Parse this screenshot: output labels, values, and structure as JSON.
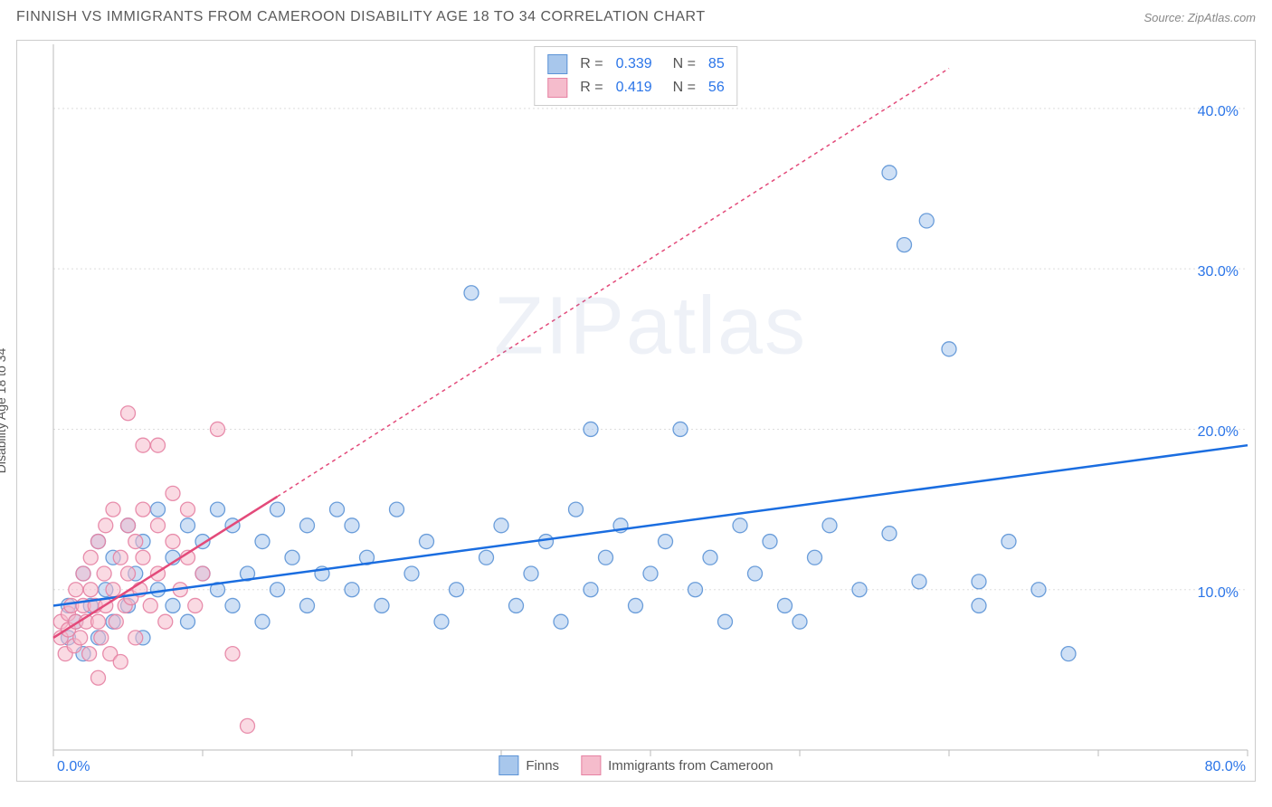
{
  "title": "FINNISH VS IMMIGRANTS FROM CAMEROON DISABILITY AGE 18 TO 34 CORRELATION CHART",
  "source": "Source: ZipAtlas.com",
  "watermark": "ZIPatlas",
  "y_axis_label": "Disability Age 18 to 34",
  "chart": {
    "type": "scatter",
    "background_color": "#ffffff",
    "grid_color": "#dedede",
    "xlim": [
      0,
      80
    ],
    "ylim": [
      0,
      44
    ],
    "x_ticks": [
      0,
      10,
      20,
      30,
      40,
      50,
      60,
      70,
      80
    ],
    "x_tick_labels_shown": {
      "left": "0.0%",
      "right": "80.0%"
    },
    "y_ticks": [
      10,
      20,
      30,
      40
    ],
    "y_tick_labels": [
      "10.0%",
      "20.0%",
      "30.0%",
      "40.0%"
    ],
    "marker_radius": 8,
    "marker_opacity": 0.55,
    "marker_stroke_opacity": 0.9,
    "line_width": 2.5,
    "series": [
      {
        "name": "Finns",
        "color_fill": "#a8c7ec",
        "color_stroke": "#5c93d6",
        "line_color": "#1a6de0",
        "r_value": "0.339",
        "n_value": "85",
        "trend": {
          "x1": 0,
          "y1": 9.0,
          "x2": 80,
          "y2": 19.0,
          "dash": "none"
        },
        "points": [
          [
            1,
            7
          ],
          [
            1,
            9
          ],
          [
            1.5,
            8
          ],
          [
            2,
            6
          ],
          [
            2,
            11
          ],
          [
            2.5,
            9
          ],
          [
            3,
            13
          ],
          [
            3,
            7
          ],
          [
            3.5,
            10
          ],
          [
            4,
            12
          ],
          [
            4,
            8
          ],
          [
            5,
            14
          ],
          [
            5,
            9
          ],
          [
            5.5,
            11
          ],
          [
            6,
            13
          ],
          [
            6,
            7
          ],
          [
            7,
            10
          ],
          [
            7,
            15
          ],
          [
            8,
            9
          ],
          [
            8,
            12
          ],
          [
            9,
            14
          ],
          [
            9,
            8
          ],
          [
            10,
            11
          ],
          [
            10,
            13
          ],
          [
            11,
            10
          ],
          [
            11,
            15
          ],
          [
            12,
            9
          ],
          [
            12,
            14
          ],
          [
            13,
            11
          ],
          [
            14,
            13
          ],
          [
            14,
            8
          ],
          [
            15,
            15
          ],
          [
            15,
            10
          ],
          [
            16,
            12
          ],
          [
            17,
            14
          ],
          [
            17,
            9
          ],
          [
            18,
            11
          ],
          [
            19,
            15
          ],
          [
            20,
            10
          ],
          [
            20,
            14
          ],
          [
            21,
            12
          ],
          [
            22,
            9
          ],
          [
            23,
            15
          ],
          [
            24,
            11
          ],
          [
            25,
            13
          ],
          [
            26,
            8
          ],
          [
            27,
            10
          ],
          [
            28,
            28.5
          ],
          [
            29,
            12
          ],
          [
            30,
            14
          ],
          [
            31,
            9
          ],
          [
            32,
            11
          ],
          [
            33,
            13
          ],
          [
            34,
            8
          ],
          [
            35,
            15
          ],
          [
            36,
            20
          ],
          [
            36,
            10
          ],
          [
            37,
            12
          ],
          [
            38,
            14
          ],
          [
            39,
            9
          ],
          [
            40,
            11
          ],
          [
            41,
            13
          ],
          [
            42,
            20
          ],
          [
            43,
            10
          ],
          [
            44,
            12
          ],
          [
            45,
            8
          ],
          [
            46,
            14
          ],
          [
            47,
            11
          ],
          [
            48,
            13
          ],
          [
            49,
            9
          ],
          [
            50,
            8
          ],
          [
            51,
            12
          ],
          [
            52,
            14
          ],
          [
            54,
            10
          ],
          [
            56,
            13.5
          ],
          [
            56,
            36
          ],
          [
            57,
            31.5
          ],
          [
            58,
            10.5
          ],
          [
            60,
            25
          ],
          [
            58.5,
            33
          ],
          [
            62,
            9
          ],
          [
            64,
            13
          ],
          [
            66,
            10
          ],
          [
            68,
            6
          ],
          [
            62,
            10.5
          ]
        ]
      },
      {
        "name": "Immigrants from Cameroon",
        "color_fill": "#f5bccc",
        "color_stroke": "#e682a3",
        "line_color": "#e34a7a",
        "r_value": "0.419",
        "n_value": "56",
        "trend": {
          "x1": 0,
          "y1": 7.0,
          "x2": 15,
          "y2": 15.8,
          "dash": "none"
        },
        "trend_extension": {
          "x1": 15,
          "y1": 15.8,
          "x2": 60,
          "y2": 42.5,
          "dash": "4,4"
        },
        "points": [
          [
            0.5,
            7
          ],
          [
            0.5,
            8
          ],
          [
            0.8,
            6
          ],
          [
            1,
            8.5
          ],
          [
            1,
            7.5
          ],
          [
            1.2,
            9
          ],
          [
            1.4,
            6.5
          ],
          [
            1.5,
            8
          ],
          [
            1.5,
            10
          ],
          [
            1.8,
            7
          ],
          [
            2,
            9
          ],
          [
            2,
            11
          ],
          [
            2.2,
            8
          ],
          [
            2.4,
            6
          ],
          [
            2.5,
            10
          ],
          [
            2.5,
            12
          ],
          [
            2.8,
            9
          ],
          [
            3,
            8
          ],
          [
            3,
            13
          ],
          [
            3.2,
            7
          ],
          [
            3.4,
            11
          ],
          [
            3.5,
            9
          ],
          [
            3.5,
            14
          ],
          [
            3.8,
            6
          ],
          [
            4,
            10
          ],
          [
            4,
            15
          ],
          [
            4.2,
            8
          ],
          [
            4.5,
            12
          ],
          [
            4.5,
            5.5
          ],
          [
            4.8,
            9
          ],
          [
            5,
            11
          ],
          [
            5,
            14
          ],
          [
            5.2,
            9.5
          ],
          [
            5.5,
            13
          ],
          [
            5.5,
            7
          ],
          [
            5.8,
            10
          ],
          [
            6,
            12
          ],
          [
            6,
            15
          ],
          [
            6.5,
            9
          ],
          [
            7,
            11
          ],
          [
            7,
            14
          ],
          [
            7.5,
            8
          ],
          [
            8,
            13
          ],
          [
            8,
            16
          ],
          [
            8.5,
            10
          ],
          [
            9,
            12
          ],
          [
            9,
            15
          ],
          [
            6,
            19
          ],
          [
            9.5,
            9
          ],
          [
            10,
            11
          ],
          [
            11,
            20
          ],
          [
            12,
            6
          ],
          [
            13,
            1.5
          ],
          [
            5,
            21
          ],
          [
            7,
            19
          ],
          [
            3,
            4.5
          ]
        ]
      }
    ]
  },
  "bottom_legend": [
    {
      "label": "Finns",
      "fill": "#a8c7ec",
      "stroke": "#5c93d6"
    },
    {
      "label": "Immigrants from Cameroon",
      "fill": "#f5bccc",
      "stroke": "#e682a3"
    }
  ]
}
